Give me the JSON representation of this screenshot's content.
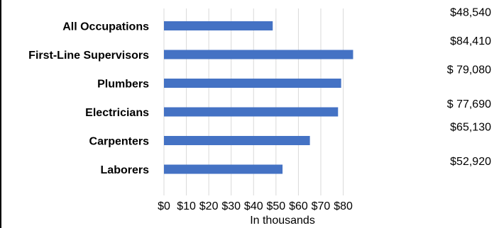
{
  "chart_data": {
    "type": "bar",
    "orientation": "horizontal",
    "categories": [
      "All Occupations",
      "First-Line Supervisors",
      "Plumbers",
      "Electricians",
      "Carpenters",
      "Laborers"
    ],
    "values": [
      48.54,
      84.41,
      79.08,
      77.69,
      65.13,
      52.92
    ],
    "data_labels": [
      "$48,540",
      "$84,410",
      "$ 79,080",
      "$ 77,690",
      "$65,130",
      "$52,920"
    ],
    "xlabel": "In thousands",
    "ylabel": "",
    "xlim": [
      0,
      80
    ],
    "x_ticks": [
      0,
      10,
      20,
      30,
      40,
      50,
      60,
      70,
      80
    ],
    "x_tick_labels": [
      "$0",
      "$10",
      "$20",
      "$30",
      "$40",
      "$50",
      "$60",
      "$70",
      "$80"
    ],
    "grid": "vertical",
    "legend": "none",
    "colors": {
      "bar": "#4472C4",
      "grid": "#D9D9D9",
      "text": "#000000"
    }
  }
}
